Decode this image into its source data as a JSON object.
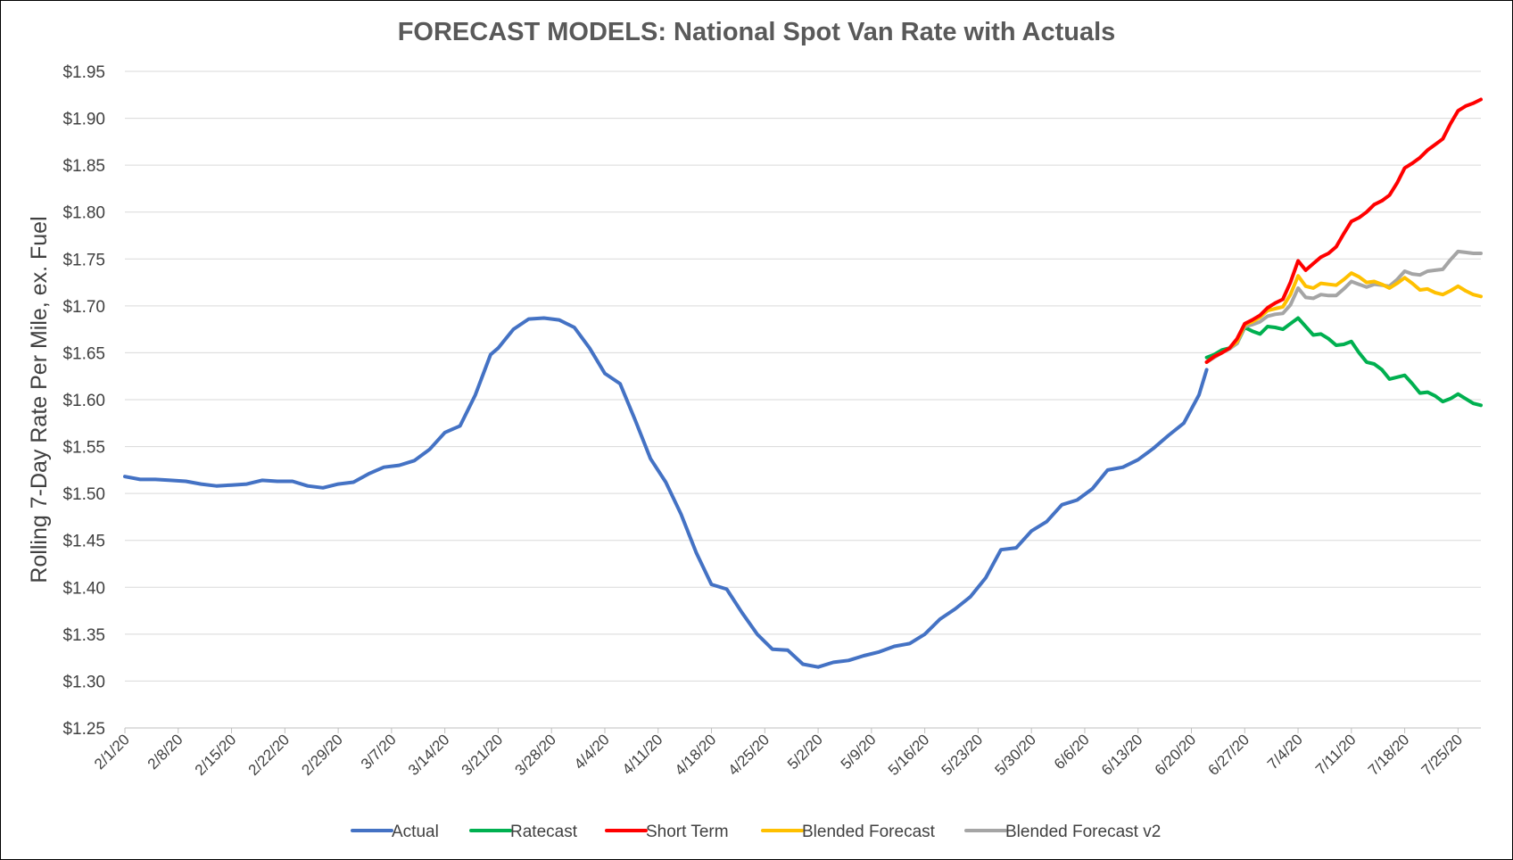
{
  "chart_data": {
    "type": "line",
    "title": "FORECAST MODELS: National Spot Van Rate with  Actuals",
    "xlabel": "",
    "ylabel": "Rolling 7-Day Rate Per Mile, ex. Fuel",
    "x_start": "2/1/20",
    "x_end": "7/28/20",
    "ylim": [
      1.25,
      1.95
    ],
    "y_ticks": [
      1.25,
      1.3,
      1.35,
      1.4,
      1.45,
      1.5,
      1.55,
      1.6,
      1.65,
      1.7,
      1.75,
      1.8,
      1.85,
      1.9,
      1.95
    ],
    "y_tick_labels": [
      "$1.25",
      "$1.30",
      "$1.35",
      "$1.40",
      "$1.45",
      "$1.50",
      "$1.55",
      "$1.60",
      "$1.65",
      "$1.70",
      "$1.75",
      "$1.80",
      "$1.85",
      "$1.90",
      "$1.95"
    ],
    "x_tick_labels": [
      "2/1/20",
      "2/8/20",
      "2/15/20",
      "2/22/20",
      "2/29/20",
      "3/7/20",
      "3/14/20",
      "3/21/20",
      "3/28/20",
      "4/4/20",
      "4/11/20",
      "4/18/20",
      "4/25/20",
      "5/2/20",
      "5/9/20",
      "5/16/20",
      "5/23/20",
      "5/30/20",
      "6/6/20",
      "6/13/20",
      "6/20/20",
      "6/27/20",
      "7/4/20",
      "7/11/20",
      "7/18/20",
      "7/25/20"
    ],
    "grid": true,
    "legend_position": "bottom",
    "series": [
      {
        "name": "Actual",
        "color": "#4472C4",
        "x": [
          "2/1/20",
          "2/3/20",
          "2/5/20",
          "2/7/20",
          "2/9/20",
          "2/11/20",
          "2/13/20",
          "2/15/20",
          "2/17/20",
          "2/19/20",
          "2/21/20",
          "2/23/20",
          "2/25/20",
          "2/27/20",
          "2/29/20",
          "3/2/20",
          "3/4/20",
          "3/6/20",
          "3/8/20",
          "3/10/20",
          "3/12/20",
          "3/14/20",
          "3/16/20",
          "3/18/20",
          "3/20/20",
          "3/21/20",
          "3/23/20",
          "3/25/20",
          "3/27/20",
          "3/29/20",
          "3/31/20",
          "4/2/20",
          "4/4/20",
          "4/6/20",
          "4/8/20",
          "4/10/20",
          "4/12/20",
          "4/14/20",
          "4/16/20",
          "4/18/20",
          "4/20/20",
          "4/22/20",
          "4/24/20",
          "4/26/20",
          "4/28/20",
          "4/30/20",
          "5/2/20",
          "5/4/20",
          "5/6/20",
          "5/8/20",
          "5/10/20",
          "5/12/20",
          "5/14/20",
          "5/16/20",
          "5/18/20",
          "5/20/20",
          "5/22/20",
          "5/24/20",
          "5/26/20",
          "5/28/20",
          "5/30/20",
          "6/1/20",
          "6/3/20",
          "6/5/20",
          "6/7/20",
          "6/9/20",
          "6/11/20",
          "6/13/20",
          "6/15/20",
          "6/17/20",
          "6/19/20",
          "6/21/20",
          "6/22/20"
        ],
        "values": [
          1.518,
          1.515,
          1.515,
          1.514,
          1.513,
          1.51,
          1.508,
          1.509,
          1.51,
          1.514,
          1.513,
          1.513,
          1.508,
          1.506,
          1.51,
          1.512,
          1.521,
          1.528,
          1.53,
          1.535,
          1.547,
          1.565,
          1.572,
          1.605,
          1.648,
          1.655,
          1.675,
          1.686,
          1.687,
          1.685,
          1.677,
          1.655,
          1.628,
          1.617,
          1.578,
          1.537,
          1.512,
          1.478,
          1.437,
          1.403,
          1.398,
          1.373,
          1.35,
          1.334,
          1.333,
          1.318,
          1.315,
          1.32,
          1.322,
          1.327,
          1.331,
          1.337,
          1.34,
          1.35,
          1.366,
          1.377,
          1.39,
          1.41,
          1.44,
          1.442,
          1.46,
          1.47,
          1.488,
          1.493,
          1.505,
          1.525,
          1.528,
          1.536,
          1.548,
          1.562,
          1.575,
          1.605,
          1.632
        ]
      },
      {
        "name": "Ratecast",
        "color": "#00B050",
        "x": [
          "6/22/20",
          "6/23/20",
          "6/24/20",
          "6/25/20",
          "6/26/20",
          "6/27/20",
          "6/28/20",
          "6/29/20",
          "6/30/20",
          "7/1/20",
          "7/2/20",
          "7/3/20",
          "7/4/20",
          "7/5/20",
          "7/6/20",
          "7/7/20",
          "7/8/20",
          "7/9/20",
          "7/10/20",
          "7/11/20",
          "7/12/20",
          "7/13/20",
          "7/14/20",
          "7/15/20",
          "7/16/20",
          "7/17/20",
          "7/18/20",
          "7/19/20",
          "7/20/20",
          "7/21/20",
          "7/22/20",
          "7/23/20",
          "7/24/20",
          "7/25/20",
          "7/26/20",
          "7/27/20",
          "7/28/20"
        ],
        "values": [
          1.645,
          1.648,
          1.653,
          1.655,
          1.66,
          1.677,
          1.673,
          1.67,
          1.678,
          1.677,
          1.675,
          1.681,
          1.687,
          1.678,
          1.669,
          1.67,
          1.665,
          1.658,
          1.659,
          1.662,
          1.65,
          1.64,
          1.638,
          1.632,
          1.622,
          1.624,
          1.626,
          1.617,
          1.607,
          1.608,
          1.604,
          1.598,
          1.601,
          1.606,
          1.601,
          1.596,
          1.594
        ]
      },
      {
        "name": "Short Term",
        "color": "#FF0000",
        "x": [
          "6/22/20",
          "6/23/20",
          "6/24/20",
          "6/25/20",
          "6/26/20",
          "6/27/20",
          "6/28/20",
          "6/29/20",
          "6/30/20",
          "7/1/20",
          "7/2/20",
          "7/3/20",
          "7/4/20",
          "7/5/20",
          "7/6/20",
          "7/7/20",
          "7/8/20",
          "7/9/20",
          "7/10/20",
          "7/11/20",
          "7/12/20",
          "7/13/20",
          "7/14/20",
          "7/15/20",
          "7/16/20",
          "7/17/20",
          "7/18/20",
          "7/19/20",
          "7/20/20",
          "7/21/20",
          "7/22/20",
          "7/23/20",
          "7/24/20",
          "7/25/20",
          "7/26/20",
          "7/27/20",
          "7/28/20"
        ],
        "values": [
          1.64,
          1.646,
          1.65,
          1.655,
          1.665,
          1.681,
          1.685,
          1.69,
          1.698,
          1.703,
          1.707,
          1.725,
          1.748,
          1.738,
          1.745,
          1.752,
          1.756,
          1.763,
          1.777,
          1.79,
          1.794,
          1.8,
          1.808,
          1.812,
          1.818,
          1.831,
          1.847,
          1.852,
          1.858,
          1.866,
          1.872,
          1.878,
          1.894,
          1.908,
          1.913,
          1.916,
          1.92
        ]
      },
      {
        "name": "Blended Forecast",
        "color": "#FFC000",
        "x": [
          "6/22/20",
          "6/23/20",
          "6/24/20",
          "6/25/20",
          "6/26/20",
          "6/27/20",
          "6/28/20",
          "6/29/20",
          "6/30/20",
          "7/1/20",
          "7/2/20",
          "7/3/20",
          "7/4/20",
          "7/5/20",
          "7/6/20",
          "7/7/20",
          "7/8/20",
          "7/9/20",
          "7/10/20",
          "7/11/20",
          "7/12/20",
          "7/13/20",
          "7/14/20",
          "7/15/20",
          "7/16/20",
          "7/17/20",
          "7/18/20",
          "7/19/20",
          "7/20/20",
          "7/21/20",
          "7/22/20",
          "7/23/20",
          "7/24/20",
          "7/25/20",
          "7/26/20",
          "7/27/20",
          "7/28/20"
        ],
        "values": [
          1.64,
          1.646,
          1.65,
          1.655,
          1.662,
          1.68,
          1.683,
          1.688,
          1.695,
          1.697,
          1.699,
          1.712,
          1.732,
          1.721,
          1.719,
          1.724,
          1.723,
          1.722,
          1.728,
          1.735,
          1.731,
          1.725,
          1.726,
          1.723,
          1.719,
          1.724,
          1.73,
          1.724,
          1.717,
          1.718,
          1.714,
          1.712,
          1.716,
          1.721,
          1.716,
          1.712,
          1.71
        ]
      },
      {
        "name": "Blended Forecast v2",
        "color": "#A5A5A5",
        "x": [
          "6/22/20",
          "6/23/20",
          "6/24/20",
          "6/25/20",
          "6/26/20",
          "6/27/20",
          "6/28/20",
          "6/29/20",
          "6/30/20",
          "7/1/20",
          "7/2/20",
          "7/3/20",
          "7/4/20",
          "7/5/20",
          "7/6/20",
          "7/7/20",
          "7/8/20",
          "7/9/20",
          "7/10/20",
          "7/11/20",
          "7/12/20",
          "7/13/20",
          "7/14/20",
          "7/15/20",
          "7/16/20",
          "7/17/20",
          "7/18/20",
          "7/19/20",
          "7/20/20",
          "7/21/20",
          "7/22/20",
          "7/23/20",
          "7/24/20",
          "7/25/20",
          "7/26/20",
          "7/27/20",
          "7/28/20"
        ],
        "values": [
          1.64,
          1.645,
          1.65,
          1.654,
          1.66,
          1.678,
          1.68,
          1.683,
          1.689,
          1.691,
          1.692,
          1.701,
          1.719,
          1.709,
          1.708,
          1.712,
          1.711,
          1.711,
          1.718,
          1.726,
          1.723,
          1.72,
          1.723,
          1.722,
          1.721,
          1.728,
          1.737,
          1.734,
          1.733,
          1.737,
          1.738,
          1.739,
          1.749,
          1.758,
          1.757,
          1.756,
          1.756
        ]
      }
    ]
  }
}
